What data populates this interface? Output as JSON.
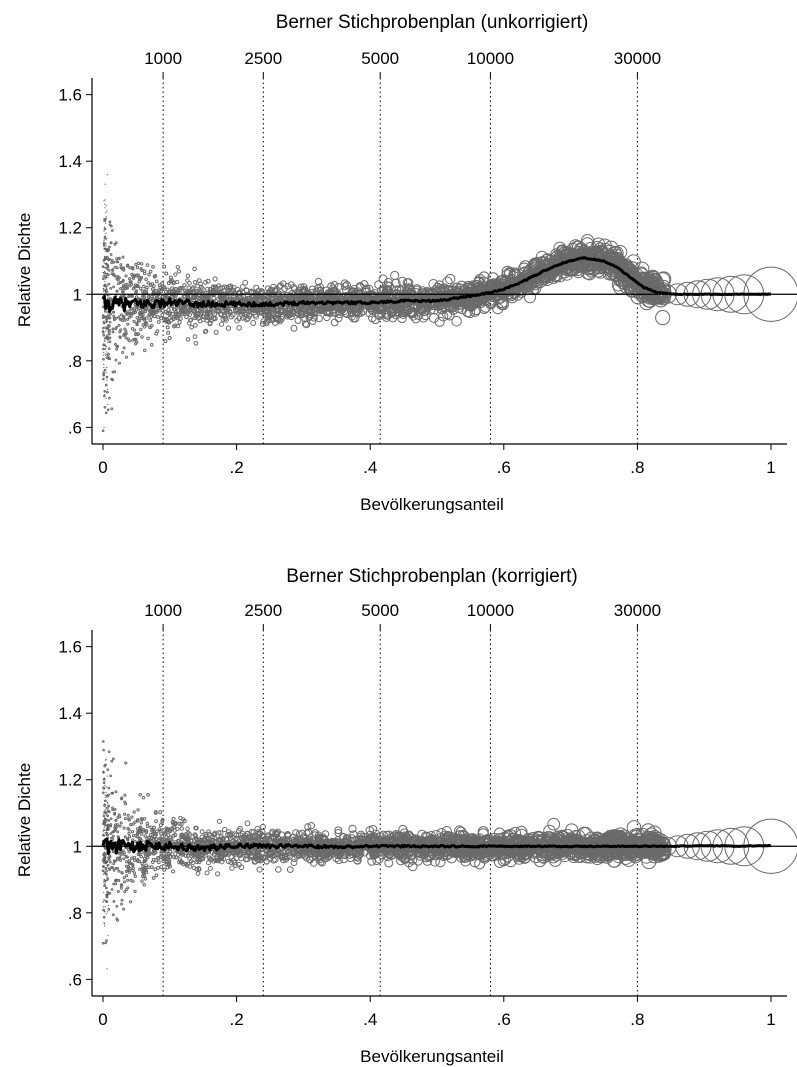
{
  "chart_data": [
    {
      "type": "scatter",
      "title": "Berner Stichprobenplan (unkorrigiert)",
      "xlabel": "Bevölkerungsanteil",
      "ylabel": "Relative Dichte",
      "xlim": [
        0,
        1
      ],
      "ylim": [
        0.55,
        1.65
      ],
      "xticks": [
        0,
        0.2,
        0.4,
        0.6,
        0.8,
        1
      ],
      "xtick_labels": [
        "0",
        ".2",
        ".4",
        ".6",
        ".8",
        "1"
      ],
      "yticks": [
        0.6,
        0.8,
        1,
        1.2,
        1.4,
        1.6
      ],
      "ytick_labels": [
        ".6",
        ".8",
        "1",
        "1.2",
        "1.4",
        "1.6"
      ],
      "top_axis": {
        "ticks": [
          0.09,
          0.24,
          0.415,
          0.58,
          0.8
        ],
        "labels": [
          "1000",
          "2500",
          "5000",
          "10000",
          "30000"
        ]
      },
      "reference_line": 1,
      "grid": false,
      "smoothed_line": {
        "x": [
          0,
          0.05,
          0.1,
          0.15,
          0.2,
          0.25,
          0.3,
          0.35,
          0.4,
          0.45,
          0.5,
          0.55,
          0.58,
          0.6,
          0.63,
          0.66,
          0.69,
          0.72,
          0.75,
          0.77,
          0.79,
          0.81,
          0.83,
          0.86,
          0.9,
          0.95,
          1.0
        ],
        "y": [
          0.97,
          0.97,
          0.975,
          0.97,
          0.97,
          0.97,
          0.975,
          0.975,
          0.975,
          0.98,
          0.98,
          0.995,
          1.005,
          1.015,
          1.04,
          1.07,
          1.095,
          1.11,
          1.1,
          1.08,
          1.05,
          1.02,
          1.005,
          1.0,
          1.0,
          1.0,
          1.0
        ]
      },
      "bubbles_tail": [
        {
          "x": 0.845,
          "y": 1.0,
          "r": 0.03
        },
        {
          "x": 0.86,
          "y": 1.0,
          "r": 0.035
        },
        {
          "x": 0.875,
          "y": 1.0,
          "r": 0.04
        },
        {
          "x": 0.89,
          "y": 1.0,
          "r": 0.045
        },
        {
          "x": 0.905,
          "y": 1.0,
          "r": 0.05
        },
        {
          "x": 0.92,
          "y": 1.0,
          "r": 0.055
        },
        {
          "x": 0.94,
          "y": 1.0,
          "r": 0.06
        },
        {
          "x": 0.96,
          "y": 1.0,
          "r": 0.065
        },
        {
          "x": 1.0,
          "y": 1.0,
          "r": 0.09
        }
      ]
    },
    {
      "type": "scatter",
      "title": "Berner Stichprobenplan (korrigiert)",
      "xlabel": "Bevölkerungsanteil",
      "ylabel": "Relative Dichte",
      "xlim": [
        0,
        1
      ],
      "ylim": [
        0.55,
        1.65
      ],
      "xticks": [
        0,
        0.2,
        0.4,
        0.6,
        0.8,
        1
      ],
      "xtick_labels": [
        "0",
        ".2",
        ".4",
        ".6",
        ".8",
        "1"
      ],
      "yticks": [
        0.6,
        0.8,
        1,
        1.2,
        1.4,
        1.6
      ],
      "ytick_labels": [
        ".6",
        ".8",
        "1",
        "1.2",
        "1.4",
        "1.6"
      ],
      "top_axis": {
        "ticks": [
          0.09,
          0.24,
          0.415,
          0.58,
          0.8
        ],
        "labels": [
          "1000",
          "2500",
          "5000",
          "10000",
          "30000"
        ]
      },
      "reference_line": 1,
      "grid": false,
      "smoothed_line": {
        "x": [
          0,
          0.05,
          0.1,
          0.15,
          0.2,
          0.25,
          0.3,
          0.35,
          0.4,
          0.45,
          0.5,
          0.55,
          0.6,
          0.65,
          0.7,
          0.75,
          0.8,
          0.85,
          0.9,
          0.95,
          1.0
        ],
        "y": [
          1.0,
          1.0,
          1.0,
          0.995,
          1.0,
          1.0,
          1.0,
          0.998,
          1.0,
          1.0,
          1.0,
          1.0,
          1.0,
          1.0,
          1.0,
          1.0,
          1.0,
          1.0,
          1.002,
          1.0,
          1.002
        ]
      },
      "bubbles_tail": [
        {
          "x": 0.845,
          "y": 1.0,
          "r": 0.03
        },
        {
          "x": 0.86,
          "y": 1.0,
          "r": 0.035
        },
        {
          "x": 0.875,
          "y": 1.0,
          "r": 0.04
        },
        {
          "x": 0.89,
          "y": 1.0,
          "r": 0.045
        },
        {
          "x": 0.905,
          "y": 1.0,
          "r": 0.05
        },
        {
          "x": 0.92,
          "y": 1.0,
          "r": 0.055
        },
        {
          "x": 0.94,
          "y": 1.0,
          "r": 0.06
        },
        {
          "x": 0.96,
          "y": 1.0,
          "r": 0.065
        },
        {
          "x": 1.0,
          "y": 1.0,
          "r": 0.09
        }
      ]
    }
  ]
}
